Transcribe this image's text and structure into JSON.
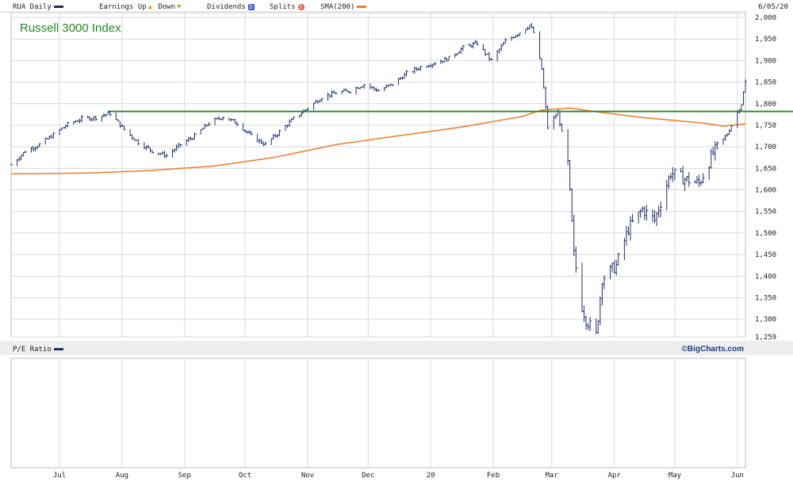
{
  "header": {
    "symbol_label": "RUA Daily",
    "earnings_label": "Earnings",
    "up_label": "Up",
    "down_label": "Down",
    "dividends_label": "Dividends",
    "dividends_icon": "D",
    "splits_label": "Splits",
    "splits_icon": "S",
    "sma_label": "SMA(200)",
    "date_label": "6/05/20"
  },
  "annotation": {
    "title": "Russell 3000 Index"
  },
  "pe_panel": {
    "label": "P/E Ratio",
    "credit": "©BigCharts.com"
  },
  "colors": {
    "price": "#1e2d6e",
    "sma": "#f07a2a",
    "hline": "#1f8a1f",
    "grid": "#d9d9d9",
    "axis_text": "#222222",
    "up_icon": "#e0a020",
    "down_icon": "#e0a020",
    "dividends_icon_bg": "#2a5bd7",
    "splits_icon_bg": "#e05a4a"
  },
  "chart_data": {
    "type": "line",
    "title": "Russell 3000 Index",
    "xlabel": "",
    "ylabel": "",
    "x_range": [
      "2019-06-07",
      "2020-06-05"
    ],
    "ylim": [
      1259,
      2000
    ],
    "y_ticks": [
      1259,
      1300,
      1350,
      1400,
      1450,
      1500,
      1550,
      1600,
      1650,
      1700,
      1750,
      1800,
      1850,
      1900,
      1950,
      2000
    ],
    "y_tick_labels": [
      "1,259",
      "1,300",
      "1,350",
      "1,400",
      "1,450",
      "1,500",
      "1,550",
      "1,600",
      "1,650",
      "1,700",
      "1,750",
      "1,800",
      "1,850",
      "1,900",
      "1,950",
      "2,000"
    ],
    "x_tick_labels": [
      {
        "date": "2019-07-01",
        "label": "Jul"
      },
      {
        "date": "2019-08-01",
        "label": "Aug"
      },
      {
        "date": "2019-09-01",
        "label": "Sep"
      },
      {
        "date": "2019-10-01",
        "label": "Oct"
      },
      {
        "date": "2019-11-01",
        "label": "Nov"
      },
      {
        "date": "2019-12-01",
        "label": "Dec"
      },
      {
        "date": "2020-01-01",
        "label": "20"
      },
      {
        "date": "2020-02-01",
        "label": "Feb"
      },
      {
        "date": "2020-03-01",
        "label": "Mar"
      },
      {
        "date": "2020-04-01",
        "label": "Apr"
      },
      {
        "date": "2020-05-01",
        "label": "May"
      },
      {
        "date": "2020-06-01",
        "label": "Jun"
      }
    ],
    "grid": true,
    "horizontal_line": {
      "value": 1782,
      "from": "2019-07-25",
      "to": "2020-06-05"
    },
    "series": [
      {
        "name": "RUA Daily",
        "style": "ohlc",
        "points": [
          [
            "2019-06-07",
            1658
          ],
          [
            "2019-06-14",
            1690
          ],
          [
            "2019-06-21",
            1705
          ],
          [
            "2019-06-28",
            1728
          ],
          [
            "2019-07-05",
            1752
          ],
          [
            "2019-07-12",
            1765
          ],
          [
            "2019-07-19",
            1768
          ],
          [
            "2019-07-26",
            1778
          ],
          [
            "2019-08-02",
            1740
          ],
          [
            "2019-08-09",
            1710
          ],
          [
            "2019-08-16",
            1690
          ],
          [
            "2019-08-23",
            1680
          ],
          [
            "2019-08-30",
            1705
          ],
          [
            "2019-09-06",
            1725
          ],
          [
            "2019-09-13",
            1755
          ],
          [
            "2019-09-20",
            1770
          ],
          [
            "2019-09-27",
            1755
          ],
          [
            "2019-10-04",
            1725
          ],
          [
            "2019-10-11",
            1705
          ],
          [
            "2019-10-18",
            1735
          ],
          [
            "2019-10-25",
            1765
          ],
          [
            "2019-11-01",
            1790
          ],
          [
            "2019-11-08",
            1815
          ],
          [
            "2019-11-15",
            1825
          ],
          [
            "2019-11-22",
            1830
          ],
          [
            "2019-11-29",
            1845
          ],
          [
            "2019-12-06",
            1830
          ],
          [
            "2019-12-13",
            1845
          ],
          [
            "2019-12-20",
            1870
          ],
          [
            "2019-12-27",
            1885
          ],
          [
            "2020-01-03",
            1895
          ],
          [
            "2020-01-10",
            1905
          ],
          [
            "2020-01-17",
            1930
          ],
          [
            "2020-01-24",
            1940
          ],
          [
            "2020-01-31",
            1900
          ],
          [
            "2020-02-07",
            1945
          ],
          [
            "2020-02-14",
            1965
          ],
          [
            "2020-02-19",
            1982
          ],
          [
            "2020-02-21",
            1965
          ],
          [
            "2020-02-25",
            1880
          ],
          [
            "2020-02-28",
            1745
          ],
          [
            "2020-03-04",
            1780
          ],
          [
            "2020-03-09",
            1660
          ],
          [
            "2020-03-12",
            1450
          ],
          [
            "2020-03-16",
            1330
          ],
          [
            "2020-03-18",
            1300
          ],
          [
            "2020-03-23",
            1262
          ],
          [
            "2020-03-26",
            1395
          ],
          [
            "2020-04-02",
            1425
          ],
          [
            "2020-04-08",
            1510
          ],
          [
            "2020-04-15",
            1555
          ],
          [
            "2020-04-21",
            1530
          ],
          [
            "2020-04-29",
            1640
          ],
          [
            "2020-05-06",
            1625
          ],
          [
            "2020-05-13",
            1615
          ],
          [
            "2020-05-20",
            1685
          ],
          [
            "2020-05-27",
            1730
          ],
          [
            "2020-06-03",
            1800
          ],
          [
            "2020-06-05",
            1850
          ]
        ]
      },
      {
        "name": "SMA(200)",
        "style": "line",
        "points": [
          [
            "2019-06-07",
            1637
          ],
          [
            "2019-07-15",
            1639
          ],
          [
            "2019-08-15",
            1645
          ],
          [
            "2019-09-15",
            1655
          ],
          [
            "2019-10-15",
            1675
          ],
          [
            "2019-11-15",
            1705
          ],
          [
            "2019-12-15",
            1725
          ],
          [
            "2020-01-15",
            1745
          ],
          [
            "2020-02-15",
            1770
          ],
          [
            "2020-02-25",
            1785
          ],
          [
            "2020-03-10",
            1790
          ],
          [
            "2020-03-25",
            1780
          ],
          [
            "2020-04-15",
            1768
          ],
          [
            "2020-05-15",
            1755
          ],
          [
            "2020-05-25",
            1748
          ],
          [
            "2020-06-05",
            1753
          ]
        ]
      }
    ]
  }
}
